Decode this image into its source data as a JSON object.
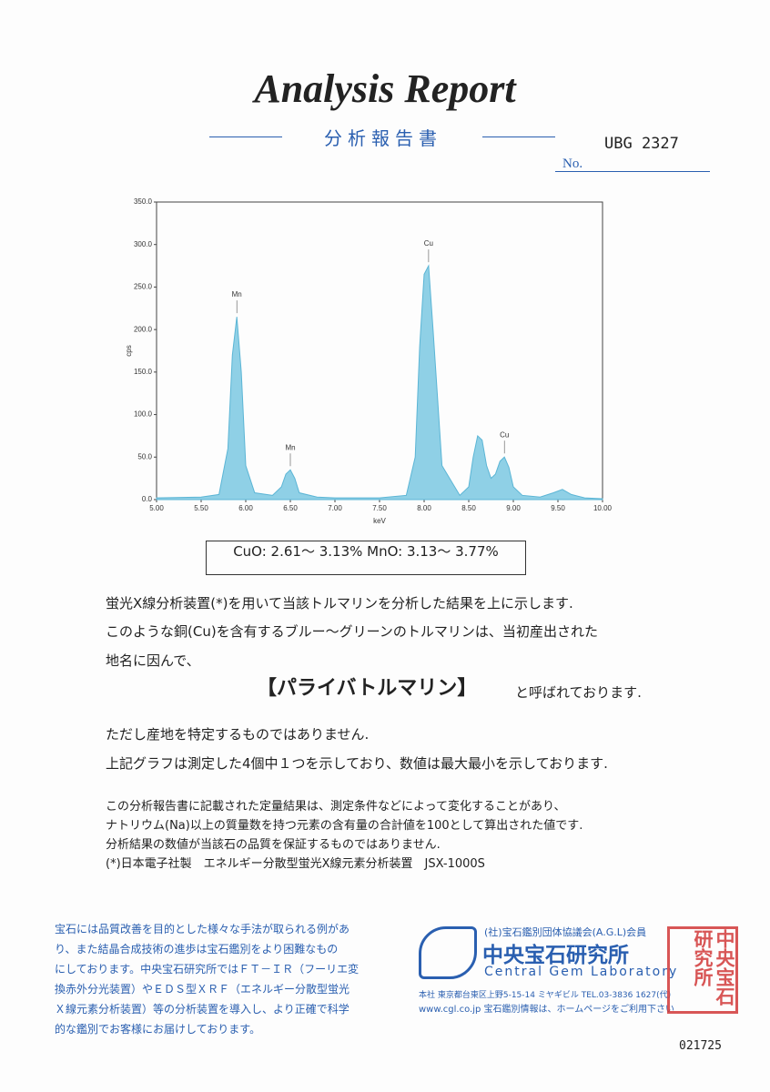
{
  "header": {
    "title": "Analysis Report",
    "subtitle": "分析報告書",
    "number_label": "No.",
    "number": "UBG 2327"
  },
  "chart_data": {
    "type": "area",
    "color": "#8fd0e6",
    "xlabel": "keV",
    "ylabel": "cps",
    "x": [
      5.0,
      5.5,
      5.7,
      5.8,
      5.85,
      5.9,
      5.95,
      6.0,
      6.1,
      6.3,
      6.4,
      6.45,
      6.5,
      6.55,
      6.6,
      6.8,
      7.0,
      7.5,
      7.8,
      7.9,
      7.95,
      8.0,
      8.05,
      8.1,
      8.2,
      8.4,
      8.5,
      8.55,
      8.6,
      8.65,
      8.7,
      8.75,
      8.8,
      8.85,
      8.9,
      8.95,
      9.0,
      9.1,
      9.3,
      9.45,
      9.55,
      9.65,
      9.8,
      10.0
    ],
    "values": [
      2,
      3,
      6,
      60,
      170,
      215,
      150,
      40,
      8,
      5,
      15,
      30,
      35,
      25,
      8,
      3,
      2,
      2,
      5,
      50,
      180,
      265,
      275,
      200,
      40,
      5,
      15,
      50,
      75,
      70,
      40,
      25,
      30,
      45,
      50,
      38,
      15,
      5,
      3,
      8,
      12,
      6,
      2,
      1
    ],
    "xlim": [
      5,
      10
    ],
    "xticks": [
      {
        "value": 5,
        "label": "5.00"
      },
      {
        "value": 5.5,
        "label": "5.50"
      },
      {
        "value": 6,
        "label": "6.00"
      },
      {
        "value": 6.5,
        "label": "6.50"
      },
      {
        "value": 7,
        "label": "7.00"
      },
      {
        "value": 7.5,
        "label": "7.50"
      },
      {
        "value": 8,
        "label": "8.00"
      },
      {
        "value": 8.5,
        "label": "8.50"
      },
      {
        "value": 9,
        "label": "9.00"
      },
      {
        "value": 9.5,
        "label": "9.50"
      },
      {
        "value": 10,
        "label": "10.00"
      }
    ],
    "ylim": [
      0,
      350
    ],
    "yticks": [
      {
        "value": 0,
        "label": "0.0"
      },
      {
        "value": 50,
        "label": "50.0"
      },
      {
        "value": 100,
        "label": "100.0"
      },
      {
        "value": 150,
        "label": "150.0"
      },
      {
        "value": 200,
        "label": "200.0"
      },
      {
        "value": 250,
        "label": "250.0"
      },
      {
        "value": 300,
        "label": "300.0"
      },
      {
        "value": 350,
        "label": "350.0"
      }
    ],
    "annotations": [
      {
        "text": "Mn",
        "x": 5.9,
        "y": 215
      },
      {
        "text": "Mn",
        "x": 6.5,
        "y": 35
      },
      {
        "text": "Cu",
        "x": 8.05,
        "y": 275
      },
      {
        "text": "Cu",
        "x": 8.9,
        "y": 50
      }
    ]
  },
  "result": "CuO: 2.61～ 3.13%  MnO: 3.13～ 3.77%",
  "body": {
    "line1": "蛍光X線分析装置(*)を用いて当該トルマリンを分析した結果を上に示します.",
    "line2": "このような銅(Cu)を含有するブルー～グリーンのトルマリンは、当初産出された",
    "line3": "地名に因んで、",
    "name": "【パライバトルマリン】",
    "line4": "と呼ばれております.",
    "line5": "ただし産地を特定するものではありません.",
    "line6": "上記グラフは測定した4個中１つを示しており、数値は最大最小を示しております."
  },
  "notes": [
    "この分析報告書に記載された定量結果は、測定条件などによって変化することがあり、",
    "ナトリウム(Na)以上の質量数を持つ元素の含有量の合計値を100として算出された値です.",
    "分析結果の数値が当該石の品質を保証するものではありません.",
    "(*)日本電子社製　エネルギー分散型蛍光X線元素分析装置　JSX-1000S"
  ],
  "footer": {
    "notice": [
      "宝石には品質改善を目的とした様々な手法が取られる例があ",
      "り、また結晶合成技術の進歩は宝石鑑別をより困難なもの",
      "にしております。中央宝石研究所ではＦＴ－ＩＲ（フーリエ変",
      "換赤外分光装置）やＥＤＳ型ＸＲＦ（エネルギー分散型蛍光",
      "Ｘ線元素分析装置）等の分析装置を導入し、より正確で科学",
      "的な鑑別でお客様にお届けしております。"
    ],
    "association": "(社)宝石鑑別団体協議会(A.G.L)会員",
    "lab": "中央宝石研究所",
    "lab_en": "Central Gem Laboratory",
    "address": "本社 東京都台東区上野5-15-14 ミヤギビル TEL.03-3836 1627(代)",
    "web": "www.cgl.co.jp  宝石鑑別情報は、ホームページをご利用下さい",
    "seal": "中央宝石研究所",
    "serial": "021725"
  }
}
